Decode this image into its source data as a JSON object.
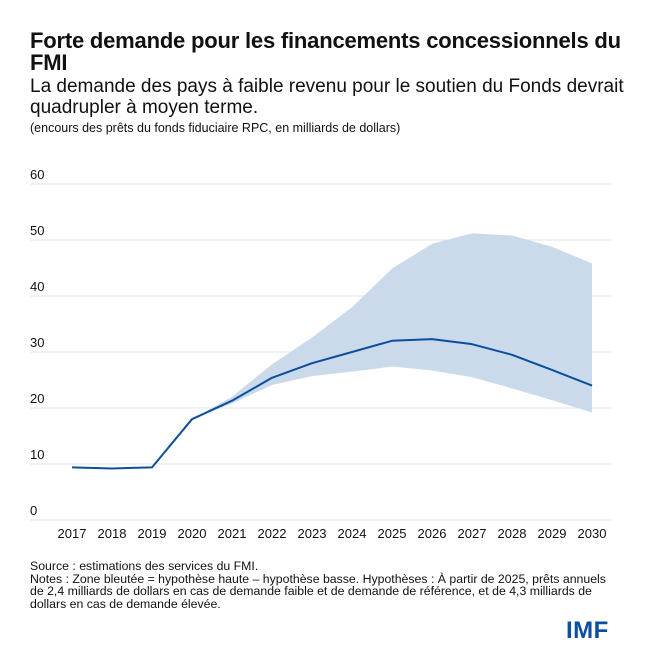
{
  "header": {
    "title": "Forte demande pour les financements concessionnels du FMI",
    "subtitle": "La demande des pays à faible revenu pour le soutien du Fonds devrait quadrupler à moyen terme.",
    "units": "(encours des prêts du fonds fiduciaire RPC, en milliards de dollars)"
  },
  "footer": {
    "source": "Source : estimations des services du FMI.",
    "notes": "Notes : Zone bleutée = hypothèse haute – hypothèse basse. Hypothèses : À partir de 2025, prêts annuels de 2,4 milliards de dollars en cas de demande faible et de demande de référence, et de 4,3 milliards de dollars en cas de demande élevée."
  },
  "logo": {
    "text": "IMF",
    "color": "#0b4ea2"
  },
  "colors": {
    "line": "#0a4f9c",
    "band": "#cbdaea",
    "grid": "#e3e3e3"
  },
  "chart_data": {
    "type": "area",
    "title": "Forte demande pour les financements concessionnels du FMI",
    "xlabel": "",
    "ylabel": "",
    "ylim": [
      0,
      60
    ],
    "yticks": [
      0,
      10,
      20,
      30,
      40,
      50,
      60
    ],
    "grid": true,
    "legend": "none",
    "x": [
      "2017",
      "2018",
      "2019",
      "2020",
      "2021",
      "2022",
      "2023",
      "2024",
      "2025",
      "2026",
      "2027",
      "2028",
      "2029",
      "2030"
    ],
    "series": [
      {
        "name": "Référence",
        "kind": "line",
        "values": [
          9.4,
          9.2,
          9.4,
          18.0,
          21.3,
          25.4,
          28.0,
          30.0,
          32.0,
          32.3,
          31.4,
          29.5,
          26.8,
          24.0
        ]
      },
      {
        "name": "Hypothèse haute",
        "kind": "band-upper",
        "values": [
          null,
          null,
          null,
          18.0,
          22.0,
          27.8,
          32.6,
          38.0,
          44.9,
          49.3,
          51.2,
          50.8,
          48.8,
          45.8
        ]
      },
      {
        "name": "Hypothèse basse",
        "kind": "band-lower",
        "values": [
          null,
          null,
          null,
          18.0,
          20.8,
          24.1,
          25.7,
          26.5,
          27.4,
          26.7,
          25.5,
          23.5,
          21.4,
          19.2
        ]
      }
    ]
  }
}
